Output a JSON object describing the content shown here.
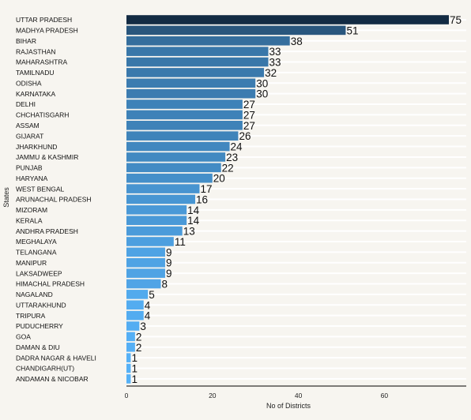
{
  "chart_data": {
    "type": "bar",
    "orientation": "horizontal",
    "categories": [
      "UTTAR PRADESH",
      "MADHYA PRADESH",
      "BIHAR",
      "RAJASTHAN",
      "MAHARASHTRA",
      "TAMILNADU",
      "ODISHA",
      "KARNATAKA",
      "DELHI",
      "CHCHATISGARH",
      "ASSAM",
      "GIJARAT",
      "JHARKHUND",
      "JAMMU & KASHMIR",
      "PUNJAB",
      "HARYANA",
      "WEST BENGAL",
      "ARUNACHAL PRADESH",
      "MIZORAM",
      "KERALA",
      "ANDHRA PRADESH",
      "MEGHALAYA",
      "TELANGANA",
      "MANIPUR",
      "LAKSADWEEP",
      "HIMACHAL PRADESH",
      "NAGALAND",
      "UTTARAKHUND",
      "TRIPURA",
      "PUDUCHERRY",
      "GOA",
      "DAMAN & DIU",
      "DADRA NAGAR & HAVELI",
      "CHANDIGARH(UT)",
      "ANDAMAN & NICOBAR"
    ],
    "values": [
      75,
      51,
      38,
      33,
      33,
      32,
      30,
      30,
      27,
      27,
      27,
      26,
      24,
      23,
      22,
      20,
      17,
      16,
      14,
      14,
      13,
      11,
      9,
      9,
      9,
      8,
      5,
      4,
      4,
      3,
      2,
      2,
      1,
      1,
      1
    ],
    "xlabel": "No of Districts",
    "ylabel": "States",
    "xlim": [
      0,
      78
    ],
    "xticks": [
      0,
      20,
      40,
      60
    ],
    "data_labels": true,
    "color_scale": {
      "low": "#56b1f7",
      "high": "#132b43"
    },
    "grid": true,
    "legend": "none"
  }
}
